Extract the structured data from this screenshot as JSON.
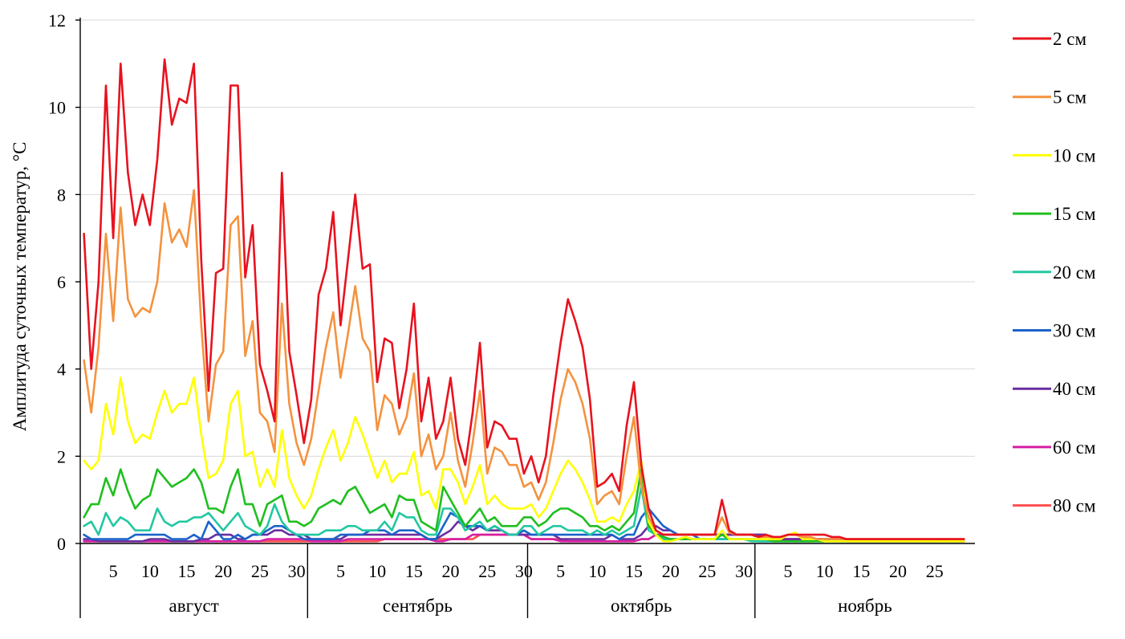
{
  "chart_data": {
    "type": "line",
    "ylabel": "Амплитуда суточных температур, °С",
    "ylim": [
      0,
      12
    ],
    "yticks": [
      0,
      2,
      4,
      6,
      8,
      10,
      12
    ],
    "grid": true,
    "legend_position": "right",
    "months": [
      {
        "name": "август",
        "days": 31,
        "tick_labels": [
          "5",
          "10",
          "15",
          "20",
          "25",
          "30"
        ]
      },
      {
        "name": "сентябрь",
        "days": 30,
        "tick_labels": [
          "5",
          "10",
          "15",
          "20",
          "25",
          "30"
        ]
      },
      {
        "name": "октябрь",
        "days": 31,
        "tick_labels": [
          "5",
          "10",
          "15",
          "20",
          "25",
          "30"
        ]
      },
      {
        "name": "ноябрь",
        "days": 30,
        "tick_labels": [
          "5",
          "10",
          "15",
          "20",
          "25"
        ]
      }
    ],
    "series": [
      {
        "name": "2 см",
        "color": "#e8121e",
        "values": [
          7.1,
          4.0,
          6.0,
          10.5,
          7.0,
          11.0,
          8.5,
          7.3,
          8.0,
          7.3,
          8.8,
          11.1,
          9.6,
          10.2,
          10.1,
          11.0,
          6.5,
          3.5,
          6.2,
          6.3,
          10.5,
          10.5,
          6.1,
          7.3,
          4.1,
          3.5,
          2.8,
          8.5,
          4.4,
          3.4,
          2.3,
          3.3,
          5.7,
          6.3,
          7.6,
          5.0,
          6.5,
          8.0,
          6.3,
          6.4,
          3.7,
          4.7,
          4.6,
          3.1,
          4.0,
          5.5,
          2.8,
          3.8,
          2.4,
          2.8,
          3.8,
          2.4,
          1.8,
          3.0,
          4.6,
          2.2,
          2.8,
          2.7,
          2.4,
          2.4,
          1.6,
          2.0,
          1.4,
          2.0,
          3.4,
          4.6,
          5.6,
          5.1,
          4.5,
          3.3,
          1.3,
          1.4,
          1.6,
          1.2,
          2.7,
          3.7,
          1.8,
          0.8,
          0.3,
          0.2,
          0.2,
          0.2,
          0.2,
          0.2,
          0.2,
          0.2,
          0.2,
          1.0,
          0.3,
          0.2,
          0.2,
          0.2,
          0.15,
          0.2,
          0.15,
          0.15,
          0.2,
          0.2,
          0.2,
          0.2,
          0.2,
          0.2,
          0.15,
          0.15,
          0.1,
          0.1,
          0.1,
          0.1,
          0.1,
          0.1,
          0.1,
          0.1,
          0.1,
          0.1,
          0.1,
          0.1,
          0.1,
          0.1,
          0.1,
          0.1,
          0.1
        ]
      },
      {
        "name": "5 см",
        "color": "#f5923e",
        "values": [
          4.2,
          3.0,
          4.5,
          7.1,
          5.1,
          7.7,
          5.6,
          5.2,
          5.4,
          5.3,
          6.0,
          7.8,
          6.9,
          7.2,
          6.8,
          8.1,
          5.0,
          2.8,
          4.1,
          4.4,
          7.3,
          7.5,
          4.3,
          5.1,
          3.0,
          2.8,
          2.1,
          5.5,
          3.2,
          2.3,
          1.8,
          2.4,
          3.5,
          4.5,
          5.3,
          3.8,
          4.8,
          5.9,
          4.7,
          4.4,
          2.6,
          3.4,
          3.2,
          2.5,
          2.9,
          3.9,
          2.0,
          2.5,
          1.7,
          2.0,
          3.0,
          1.9,
          1.3,
          2.3,
          3.5,
          1.6,
          2.2,
          2.1,
          1.8,
          1.8,
          1.3,
          1.4,
          1.0,
          1.4,
          2.3,
          3.3,
          4.0,
          3.7,
          3.2,
          2.4,
          0.9,
          1.1,
          1.2,
          0.9,
          2.0,
          2.9,
          1.3,
          0.6,
          0.3,
          0.2,
          0.2,
          0.2,
          0.2,
          0.2,
          0.2,
          0.2,
          0.2,
          0.6,
          0.25,
          0.2,
          0.2,
          0.2,
          0.15,
          0.15,
          0.15,
          0.15,
          0.2,
          0.2,
          0.15,
          0.15,
          0.1,
          0.1,
          0.1,
          0.1,
          0.1,
          0.1,
          0.1,
          0.1,
          0.1,
          0.1,
          0.1,
          0.1,
          0.1,
          0.1,
          0.1,
          0.1,
          0.1,
          0.1,
          0.1,
          0.1,
          0.1
        ]
      },
      {
        "name": "10 см",
        "color": "#ffff00",
        "values": [
          1.9,
          1.7,
          1.9,
          3.2,
          2.5,
          3.8,
          2.8,
          2.3,
          2.5,
          2.4,
          3.0,
          3.5,
          3.0,
          3.2,
          3.2,
          3.8,
          2.5,
          1.5,
          1.6,
          1.9,
          3.2,
          3.5,
          2.0,
          2.1,
          1.3,
          1.7,
          1.3,
          2.6,
          1.5,
          1.1,
          0.8,
          1.1,
          1.7,
          2.2,
          2.6,
          1.9,
          2.3,
          2.9,
          2.5,
          2.0,
          1.5,
          1.9,
          1.4,
          1.6,
          1.6,
          2.1,
          1.1,
          1.2,
          0.8,
          1.7,
          1.7,
          1.4,
          0.9,
          1.3,
          1.8,
          0.9,
          1.1,
          0.9,
          0.8,
          0.8,
          0.8,
          0.9,
          0.6,
          0.8,
          1.2,
          1.6,
          1.9,
          1.7,
          1.4,
          1.0,
          0.5,
          0.5,
          0.6,
          0.5,
          0.9,
          1.2,
          1.9,
          0.5,
          0.2,
          0.05,
          0.05,
          0.1,
          0.15,
          0.1,
          0.1,
          0.1,
          0.1,
          0.3,
          0.1,
          0.1,
          0.1,
          0.1,
          0.1,
          0.1,
          0.1,
          0.1,
          0.2,
          0.25,
          0.1,
          0.1,
          0.1,
          0.05,
          0.05,
          0.05,
          0.05,
          0.05,
          0.05,
          0.05,
          0.05,
          0.05,
          0.05,
          0.05,
          0.05,
          0.05,
          0.05,
          0.05,
          0.05,
          0.05,
          0.05,
          0.05,
          0.05
        ]
      },
      {
        "name": "15 см",
        "color": "#1fbf1f",
        "values": [
          0.6,
          0.9,
          0.9,
          1.5,
          1.1,
          1.7,
          1.2,
          0.8,
          1.0,
          1.1,
          1.7,
          1.5,
          1.3,
          1.4,
          1.5,
          1.7,
          1.4,
          0.8,
          0.8,
          0.7,
          1.3,
          1.7,
          0.9,
          0.9,
          0.4,
          0.9,
          1.0,
          1.1,
          0.5,
          0.5,
          0.4,
          0.5,
          0.8,
          0.9,
          1.0,
          0.9,
          1.2,
          1.3,
          1.0,
          0.7,
          0.8,
          0.9,
          0.6,
          1.1,
          1.0,
          1.0,
          0.5,
          0.4,
          0.3,
          1.3,
          1.0,
          0.7,
          0.4,
          0.6,
          0.8,
          0.5,
          0.6,
          0.4,
          0.4,
          0.4,
          0.6,
          0.6,
          0.4,
          0.5,
          0.7,
          0.8,
          0.8,
          0.7,
          0.6,
          0.4,
          0.4,
          0.3,
          0.4,
          0.3,
          0.5,
          0.7,
          1.7,
          0.4,
          0.2,
          0.15,
          0.1,
          0.1,
          0.1,
          0.1,
          0.1,
          0.1,
          0.1,
          0.2,
          0.1,
          0.1,
          0.1,
          0.1,
          0.1,
          0.1,
          0.05,
          0.05,
          0.05,
          0.05,
          0.05,
          0.05,
          0.05,
          0.05,
          0.05,
          0.05,
          0.05,
          0.05,
          0.05,
          0.05,
          0.05,
          0.05,
          0.05,
          0.05,
          0.05,
          0.05,
          0.05,
          0.05,
          0.05,
          0.05,
          0.05,
          0.05,
          0.05
        ]
      },
      {
        "name": "20 см",
        "color": "#22c7a1",
        "values": [
          0.4,
          0.5,
          0.2,
          0.7,
          0.4,
          0.6,
          0.5,
          0.3,
          0.3,
          0.3,
          0.8,
          0.5,
          0.4,
          0.5,
          0.5,
          0.6,
          0.6,
          0.7,
          0.5,
          0.3,
          0.5,
          0.7,
          0.4,
          0.3,
          0.2,
          0.4,
          0.9,
          0.5,
          0.3,
          0.2,
          0.2,
          0.2,
          0.2,
          0.3,
          0.3,
          0.3,
          0.4,
          0.4,
          0.3,
          0.3,
          0.3,
          0.5,
          0.3,
          0.7,
          0.6,
          0.6,
          0.3,
          0.2,
          0.2,
          0.8,
          0.8,
          0.6,
          0.3,
          0.4,
          0.5,
          0.3,
          0.4,
          0.3,
          0.2,
          0.2,
          0.4,
          0.4,
          0.2,
          0.3,
          0.4,
          0.4,
          0.3,
          0.3,
          0.3,
          0.2,
          0.3,
          0.2,
          0.3,
          0.2,
          0.3,
          0.4,
          1.3,
          0.3,
          0.2,
          0.1,
          0.1,
          0.1,
          0.1,
          0.1,
          0.1,
          0.1,
          0.1,
          0.1,
          0.1,
          0.1,
          0.1,
          0.05,
          0.05,
          0.05,
          0.05,
          0.05,
          0.05,
          0.05,
          0.05,
          0.05,
          0.05,
          0.05,
          0.05,
          0.05,
          0.05,
          0.05,
          0.05,
          0.05,
          0.05,
          0.05,
          0.05,
          0.05,
          0.05,
          0.05,
          0.05,
          0.05,
          0.05,
          0.05,
          0.05,
          0.05,
          0.05
        ]
      },
      {
        "name": "30 см",
        "color": "#1a63c9",
        "values": [
          0.2,
          0.1,
          0.1,
          0.1,
          0.1,
          0.1,
          0.1,
          0.2,
          0.2,
          0.2,
          0.2,
          0.2,
          0.1,
          0.1,
          0.1,
          0.2,
          0.1,
          0.5,
          0.3,
          0.1,
          0.1,
          0.2,
          0.1,
          0.2,
          0.2,
          0.3,
          0.4,
          0.4,
          0.3,
          0.2,
          0.1,
          0.1,
          0.1,
          0.1,
          0.1,
          0.2,
          0.2,
          0.2,
          0.2,
          0.3,
          0.3,
          0.3,
          0.2,
          0.3,
          0.3,
          0.3,
          0.2,
          0.1,
          0.1,
          0.4,
          0.7,
          0.6,
          0.4,
          0.4,
          0.4,
          0.3,
          0.4,
          0.3,
          0.2,
          0.2,
          0.3,
          0.2,
          0.2,
          0.2,
          0.2,
          0.2,
          0.2,
          0.2,
          0.2,
          0.2,
          0.2,
          0.2,
          0.2,
          0.1,
          0.2,
          0.2,
          0.6,
          0.8,
          0.6,
          0.4,
          0.3,
          0.2,
          0.2,
          0.2,
          0.1,
          0.1,
          0.1,
          0.1,
          0.1,
          0.1,
          0.1,
          0.1,
          0.05,
          0.05,
          0.05,
          0.05,
          0.05,
          0.05,
          0.05,
          0.05,
          0.1,
          0.1,
          0.05,
          0.05,
          0.05,
          0.05,
          0.05,
          0.05,
          0.05,
          0.05,
          0.05,
          0.05,
          0.05,
          0.05,
          0.05,
          0.05,
          0.05,
          0.05,
          0.05,
          0.05,
          0.05
        ]
      },
      {
        "name": "40 см",
        "color": "#6a2ea0",
        "values": [
          0.1,
          0.1,
          0.05,
          0.05,
          0.05,
          0.05,
          0.05,
          0.05,
          0.05,
          0.1,
          0.1,
          0.1,
          0.05,
          0.05,
          0.05,
          0.05,
          0.1,
          0.1,
          0.2,
          0.2,
          0.2,
          0.1,
          0.1,
          0.2,
          0.2,
          0.2,
          0.3,
          0.3,
          0.2,
          0.2,
          0.2,
          0.1,
          0.1,
          0.1,
          0.1,
          0.1,
          0.2,
          0.2,
          0.2,
          0.2,
          0.2,
          0.2,
          0.2,
          0.2,
          0.2,
          0.2,
          0.2,
          0.1,
          0.1,
          0.2,
          0.3,
          0.5,
          0.4,
          0.3,
          0.4,
          0.3,
          0.3,
          0.3,
          0.2,
          0.2,
          0.2,
          0.2,
          0.2,
          0.2,
          0.2,
          0.1,
          0.1,
          0.1,
          0.1,
          0.1,
          0.1,
          0.1,
          0.2,
          0.1,
          0.1,
          0.1,
          0.2,
          0.4,
          0.4,
          0.3,
          0.3,
          0.2,
          0.2,
          0.2,
          0.2,
          0.2,
          0.2,
          0.2,
          0.2,
          0.2,
          0.2,
          0.2,
          0.2,
          0.2,
          0.1,
          0.1,
          0.1,
          0.1,
          0.1,
          0.1,
          0.1,
          0.1,
          0.1,
          0.1,
          0.05,
          0.05,
          0.05,
          0.05,
          0.05,
          0.05,
          0.05,
          0.05,
          0.05,
          0.05,
          0.05,
          0.05,
          0.05,
          0.1,
          0.05,
          0.05,
          0.05
        ]
      },
      {
        "name": "60 см",
        "color": "#d61ea3",
        "values": [
          0.05,
          0.05,
          0.05,
          0.05,
          0.05,
          0.05,
          0.05,
          0.05,
          0.05,
          0.05,
          0.05,
          0.05,
          0.05,
          0.05,
          0.05,
          0.05,
          0.05,
          0.05,
          0.05,
          0.05,
          0.05,
          0.05,
          0.05,
          0.05,
          0.05,
          0.1,
          0.1,
          0.1,
          0.1,
          0.1,
          0.1,
          0.05,
          0.05,
          0.05,
          0.05,
          0.05,
          0.1,
          0.1,
          0.1,
          0.1,
          0.1,
          0.1,
          0.1,
          0.1,
          0.1,
          0.1,
          0.1,
          0.1,
          0.05,
          0.05,
          0.1,
          0.1,
          0.1,
          0.2,
          0.2,
          0.2,
          0.2,
          0.2,
          0.2,
          0.2,
          0.2,
          0.1,
          0.1,
          0.1,
          0.1,
          0.05,
          0.05,
          0.05,
          0.05,
          0.05,
          0.05,
          0.05,
          0.05,
          0.05,
          0.05,
          0.05,
          0.1,
          0.1,
          0.2,
          0.2,
          0.2,
          0.2,
          0.2,
          0.2,
          0.2,
          0.2,
          0.2,
          0.2,
          0.2,
          0.2,
          0.2,
          0.2,
          0.2,
          0.2,
          0.1,
          0.1,
          0.1,
          0.1,
          0.1,
          0.1,
          0.1,
          0.1,
          0.1,
          0.1,
          0.05,
          0.05,
          0.05,
          0.05,
          0.05,
          0.05,
          0.05,
          0.05,
          0.05,
          0.05,
          0.05,
          0.05,
          0.05,
          0.05,
          0.05,
          0.05,
          0.05
        ]
      },
      {
        "name": "80 см",
        "color": "#ff4f4f",
        "values": [
          0.05,
          0.05,
          0.05,
          0.05,
          0.05,
          0.05,
          0.05,
          0.05,
          0.05,
          0.05,
          0.05,
          0.05,
          0.05,
          0.05,
          0.05,
          0.05,
          0.05,
          0.05,
          0.05,
          0.05,
          0.05,
          0.05,
          0.05,
          0.05,
          0.05,
          0.05,
          0.05,
          0.05,
          0.05,
          0.05,
          0.05,
          0.05,
          0.05,
          0.05,
          0.05,
          0.05,
          0.05,
          0.05,
          0.05,
          0.05,
          0.05,
          0.1,
          0.1,
          0.1,
          0.1,
          0.1,
          0.1,
          0.1,
          0.1,
          0.1,
          0.1,
          0.1,
          0.1,
          0.1,
          0.2,
          0.2,
          0.2,
          0.2,
          0.2,
          0.2,
          0.2,
          0.1,
          0.1,
          0.1,
          0.1,
          0.1,
          0.05,
          0.05,
          0.05,
          0.05,
          0.05,
          0.05,
          0.05,
          0.05,
          0.05,
          0.05,
          0.1,
          0.1,
          0.2,
          0.2,
          0.2,
          0.2,
          0.2,
          0.2,
          0.2,
          0.2,
          0.2,
          0.2,
          0.2,
          0.2,
          0.2,
          0.2,
          0.2,
          0.2,
          0.1,
          0.1,
          0.1,
          0.1,
          0.1,
          0.1,
          0.1,
          0.1,
          0.1,
          0.1,
          0.05,
          0.05,
          0.05,
          0.05,
          0.05,
          0.05,
          0.05,
          0.05,
          0.05,
          0.05,
          0.05,
          0.05,
          0.05,
          0.05,
          0.05,
          0.05,
          0.05
        ]
      }
    ]
  }
}
